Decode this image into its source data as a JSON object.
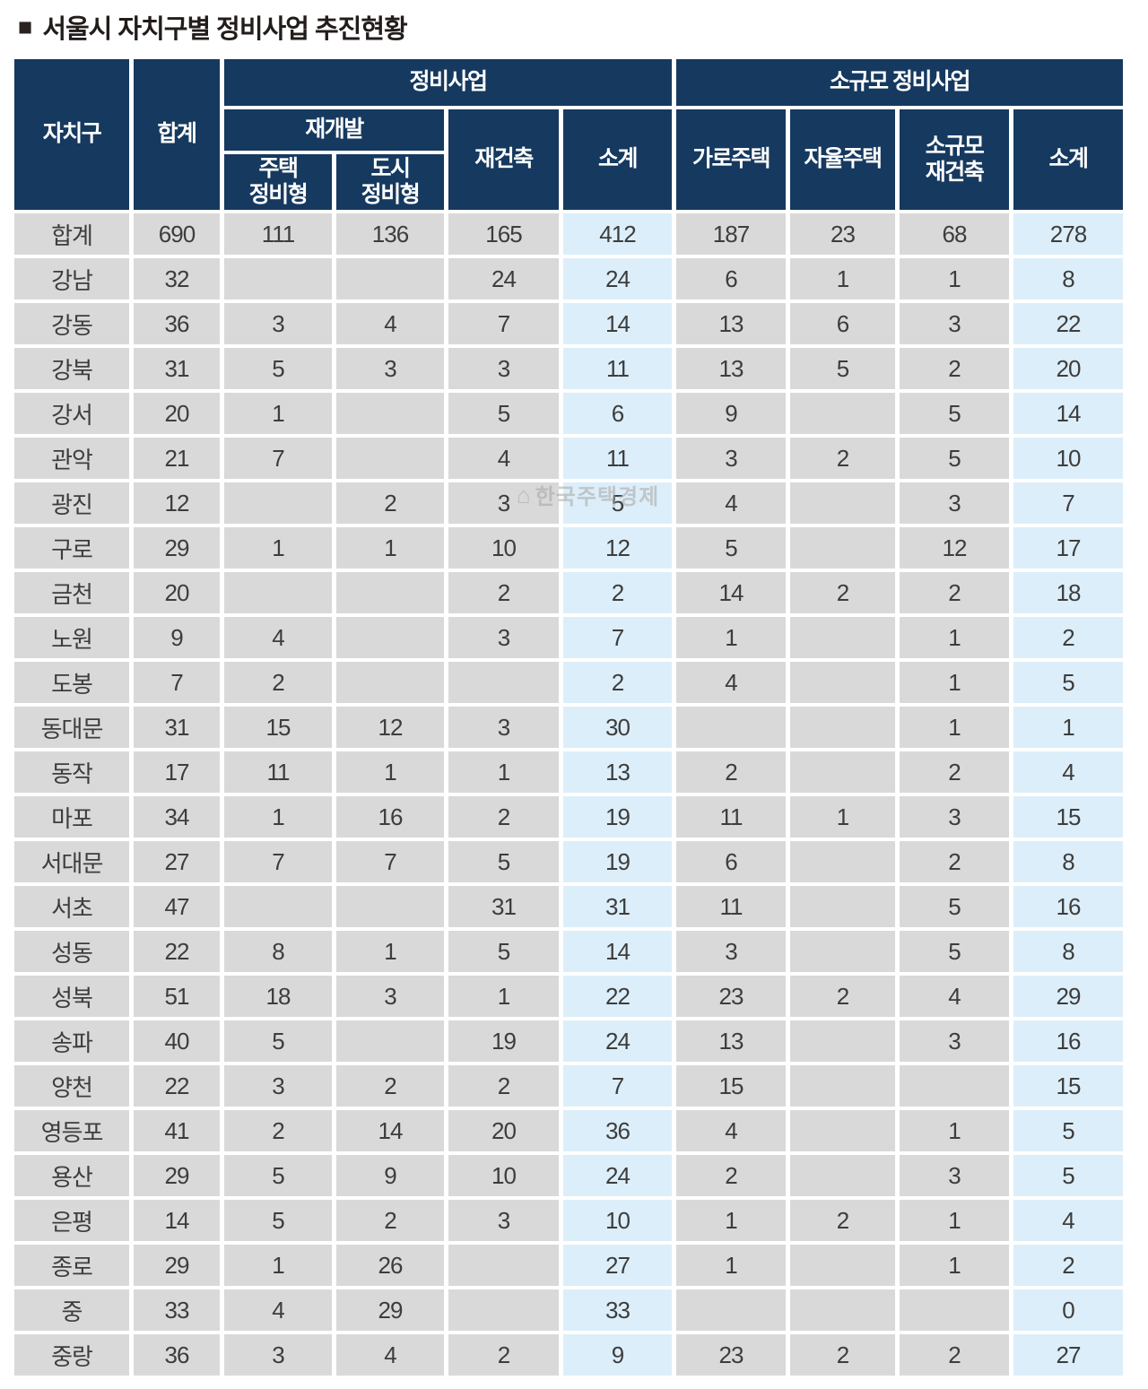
{
  "title": {
    "marker": "■",
    "text": "서울시 자치구별 정비사업 추진현황"
  },
  "watermark": {
    "icon": "⌂",
    "text": "한국주택경제"
  },
  "colors": {
    "header_navy": "#16395f",
    "cell_gray": "#d9d9d9",
    "subtotal_blue": "#dceef9",
    "title_text": "#221c1a",
    "number_text": "#3d3d3d"
  },
  "table": {
    "header": {
      "district": "자치구",
      "total": "합계",
      "group_main": "정비사업",
      "group_small": "소규모 정비사업",
      "redevelopment": "재개발",
      "housing_redev": "주택\n정비형",
      "urban_redev": "도시\n정비형",
      "reconstruction": "재건축",
      "subtotal": "소계",
      "street_housing": "가로주택",
      "autonomous_housing": "자율주택",
      "small_reconstruction": "소규모\n재건축"
    }
  },
  "chart_data": {
    "type": "table",
    "title": "서울시 자치구별 정비사업 추진현황",
    "column_groups": [
      {
        "label": "정비사업",
        "columns": [
          "주택 정비형",
          "도시 정비형",
          "재건축",
          "소계"
        ]
      },
      {
        "label": "소규모 정비사업",
        "columns": [
          "가로주택",
          "자율주택",
          "소규모 재건축",
          "소계"
        ]
      }
    ],
    "columns": [
      "자치구",
      "합계",
      "주택 정비형",
      "도시 정비형",
      "재건축",
      "소계(정비사업)",
      "가로주택",
      "자율주택",
      "소규모 재건축",
      "소계(소규모)"
    ],
    "column_keys": [
      "total",
      "housing_redev",
      "urban_redev",
      "reconstruction",
      "subtotal_main",
      "street_housing",
      "autonomous_housing",
      "small_reconstruction",
      "subtotal_small"
    ],
    "rows": [
      {
        "district": "합계",
        "values": [
          "690",
          "111",
          "136",
          "165",
          "412",
          "187",
          "23",
          "68",
          "278"
        ]
      },
      {
        "district": "강남",
        "values": [
          "32",
          "",
          "",
          "24",
          "24",
          "6",
          "1",
          "1",
          "8"
        ]
      },
      {
        "district": "강동",
        "values": [
          "36",
          "3",
          "4",
          "7",
          "14",
          "13",
          "6",
          "3",
          "22"
        ]
      },
      {
        "district": "강북",
        "values": [
          "31",
          "5",
          "3",
          "3",
          "11",
          "13",
          "5",
          "2",
          "20"
        ]
      },
      {
        "district": "강서",
        "values": [
          "20",
          "1",
          "",
          "5",
          "6",
          "9",
          "",
          "5",
          "14"
        ]
      },
      {
        "district": "관악",
        "values": [
          "21",
          "7",
          "",
          "4",
          "11",
          "3",
          "2",
          "5",
          "10"
        ]
      },
      {
        "district": "광진",
        "values": [
          "12",
          "",
          "2",
          "3",
          "5",
          "4",
          "",
          "3",
          "7"
        ]
      },
      {
        "district": "구로",
        "values": [
          "29",
          "1",
          "1",
          "10",
          "12",
          "5",
          "",
          "12",
          "17"
        ]
      },
      {
        "district": "금천",
        "values": [
          "20",
          "",
          "",
          "2",
          "2",
          "14",
          "2",
          "2",
          "18"
        ]
      },
      {
        "district": "노원",
        "values": [
          "9",
          "4",
          "",
          "3",
          "7",
          "1",
          "",
          "1",
          "2"
        ]
      },
      {
        "district": "도봉",
        "values": [
          "7",
          "2",
          "",
          "",
          "2",
          "4",
          "",
          "1",
          "5"
        ]
      },
      {
        "district": "동대문",
        "values": [
          "31",
          "15",
          "12",
          "3",
          "30",
          "",
          "",
          "1",
          "1"
        ]
      },
      {
        "district": "동작",
        "values": [
          "17",
          "11",
          "1",
          "1",
          "13",
          "2",
          "",
          "2",
          "4"
        ]
      },
      {
        "district": "마포",
        "values": [
          "34",
          "1",
          "16",
          "2",
          "19",
          "11",
          "1",
          "3",
          "15"
        ]
      },
      {
        "district": "서대문",
        "values": [
          "27",
          "7",
          "7",
          "5",
          "19",
          "6",
          "",
          "2",
          "8"
        ]
      },
      {
        "district": "서초",
        "values": [
          "47",
          "",
          "",
          "31",
          "31",
          "11",
          "",
          "5",
          "16"
        ]
      },
      {
        "district": "성동",
        "values": [
          "22",
          "8",
          "1",
          "5",
          "14",
          "3",
          "",
          "5",
          "8"
        ]
      },
      {
        "district": "성북",
        "values": [
          "51",
          "18",
          "3",
          "1",
          "22",
          "23",
          "2",
          "4",
          "29"
        ]
      },
      {
        "district": "송파",
        "values": [
          "40",
          "5",
          "",
          "19",
          "24",
          "13",
          "",
          "3",
          "16"
        ]
      },
      {
        "district": "양천",
        "values": [
          "22",
          "3",
          "2",
          "2",
          "7",
          "15",
          "",
          "",
          "15"
        ]
      },
      {
        "district": "영등포",
        "values": [
          "41",
          "2",
          "14",
          "20",
          "36",
          "4",
          "",
          "1",
          "5"
        ]
      },
      {
        "district": "용산",
        "values": [
          "29",
          "5",
          "9",
          "10",
          "24",
          "2",
          "",
          "3",
          "5"
        ]
      },
      {
        "district": "은평",
        "values": [
          "14",
          "5",
          "2",
          "3",
          "10",
          "1",
          "2",
          "1",
          "4"
        ]
      },
      {
        "district": "종로",
        "values": [
          "29",
          "1",
          "26",
          "",
          "27",
          "1",
          "",
          "1",
          "2"
        ]
      },
      {
        "district": "중",
        "values": [
          "33",
          "4",
          "29",
          "",
          "33",
          "",
          "",
          "",
          "0"
        ]
      },
      {
        "district": "중랑",
        "values": [
          "36",
          "3",
          "4",
          "2",
          "9",
          "23",
          "2",
          "2",
          "27"
        ]
      }
    ]
  }
}
